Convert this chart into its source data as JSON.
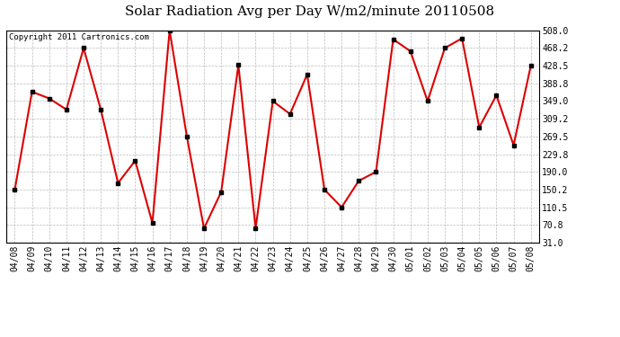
{
  "title": "Solar Radiation Avg per Day W/m2/minute 20110508",
  "copyright": "Copyright 2011 Cartronics.com",
  "labels": [
    "04/08",
    "04/09",
    "04/10",
    "04/11",
    "04/12",
    "04/13",
    "04/14",
    "04/15",
    "04/16",
    "04/17",
    "04/18",
    "04/19",
    "04/20",
    "04/21",
    "04/22",
    "04/23",
    "04/24",
    "04/25",
    "04/26",
    "04/27",
    "04/28",
    "04/29",
    "04/30",
    "05/01",
    "05/02",
    "05/03",
    "05/04",
    "05/05",
    "05/06",
    "05/07",
    "05/08"
  ],
  "values": [
    150.2,
    370.0,
    355.0,
    330.0,
    468.2,
    330.0,
    165.0,
    215.0,
    75.0,
    508.0,
    270.0,
    63.0,
    145.0,
    430.0,
    63.0,
    349.0,
    320.0,
    409.0,
    150.2,
    110.5,
    170.0,
    190.0,
    488.0,
    461.0,
    349.0,
    468.2,
    490.0,
    290.0,
    362.0,
    250.0,
    428.5
  ],
  "yticks": [
    31.0,
    70.8,
    110.5,
    150.2,
    190.0,
    229.8,
    269.5,
    309.2,
    349.0,
    388.8,
    428.5,
    468.2,
    508.0
  ],
  "line_color": "#dd0000",
  "marker": "s",
  "marker_facecolor": "#000000",
  "marker_edgecolor": "#000000",
  "marker_size": 3,
  "bg_color": "#ffffff",
  "plot_bg_color": "#ffffff",
  "grid_color": "#bbbbbb",
  "title_fontsize": 11,
  "copyright_fontsize": 6.5,
  "tick_fontsize": 7,
  "ylim": [
    31.0,
    508.0
  ],
  "linewidth": 1.5
}
